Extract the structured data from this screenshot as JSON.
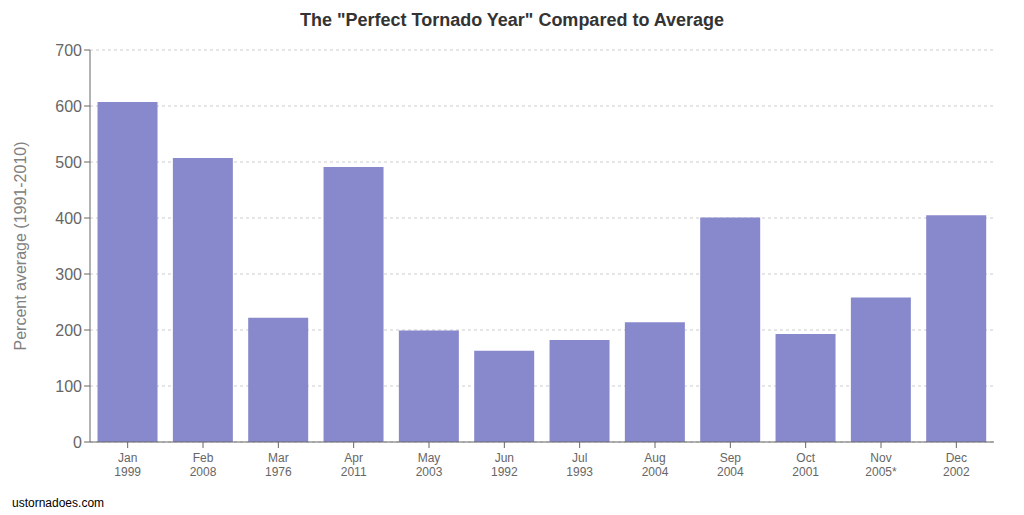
{
  "chart_data": {
    "type": "bar",
    "title": "The \"Perfect Tornado Year\" Compared to Average",
    "ylabel": "Percent average (1991-2010)",
    "categories": [
      "Jan\n1999",
      "Feb\n2008",
      "Mar\n1976",
      "Apr\n2011",
      "May\n2003",
      "Jun\n1992",
      "Jul\n1993",
      "Aug\n2004",
      "Sep\n2004",
      "Oct\n2001",
      "Nov\n2005*",
      "Dec\n2002"
    ],
    "values": [
      607,
      507,
      222,
      491,
      199,
      163,
      182,
      214,
      401,
      193,
      258,
      405
    ],
    "color": "#8888cc",
    "ylim": [
      0,
      700
    ],
    "yticks": [
      0,
      100,
      200,
      300,
      400,
      500,
      600,
      700
    ],
    "grid": true,
    "annotations": [
      "ustornadoes.com"
    ]
  }
}
